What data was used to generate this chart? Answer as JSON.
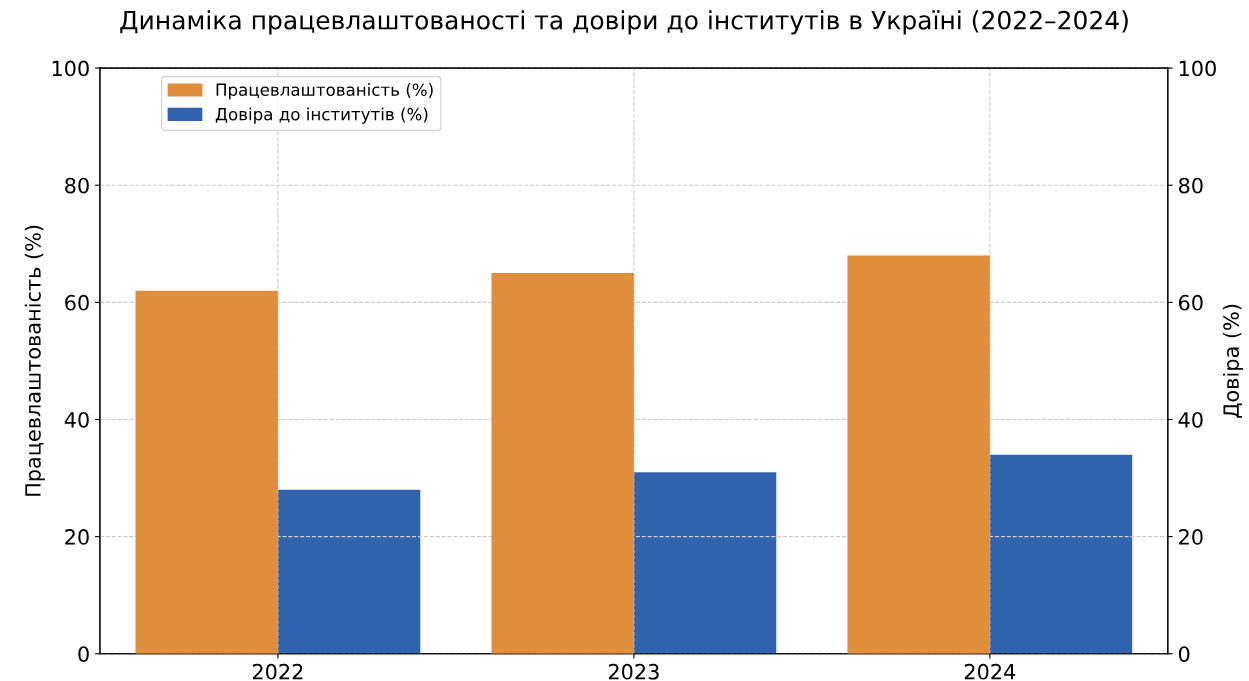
{
  "chart_data": {
    "type": "bar",
    "title": "Динаміка працевлаштованості та довіри до інститутів в Україні (2022–2024)",
    "categories": [
      "2022",
      "2023",
      "2024"
    ],
    "series": [
      {
        "name": "Працевлаштованість (%)",
        "color": "#e08e3b",
        "values": [
          62,
          65,
          68
        ]
      },
      {
        "name": "Довіра до інститутів (%)",
        "color": "#3063ad",
        "values": [
          28,
          31,
          34
        ],
        "axis": "y2"
      }
    ],
    "ylabel": "Працевлаштованість (%)",
    "y2label": "Довіра (%)",
    "ylim": [
      0,
      100
    ],
    "yticks": [
      0,
      20,
      40,
      60,
      80,
      100
    ],
    "y2lim": [
      0,
      100
    ],
    "y2ticks": [
      0,
      20,
      40,
      60,
      80,
      100
    ],
    "grid": true,
    "legend": "top left"
  }
}
